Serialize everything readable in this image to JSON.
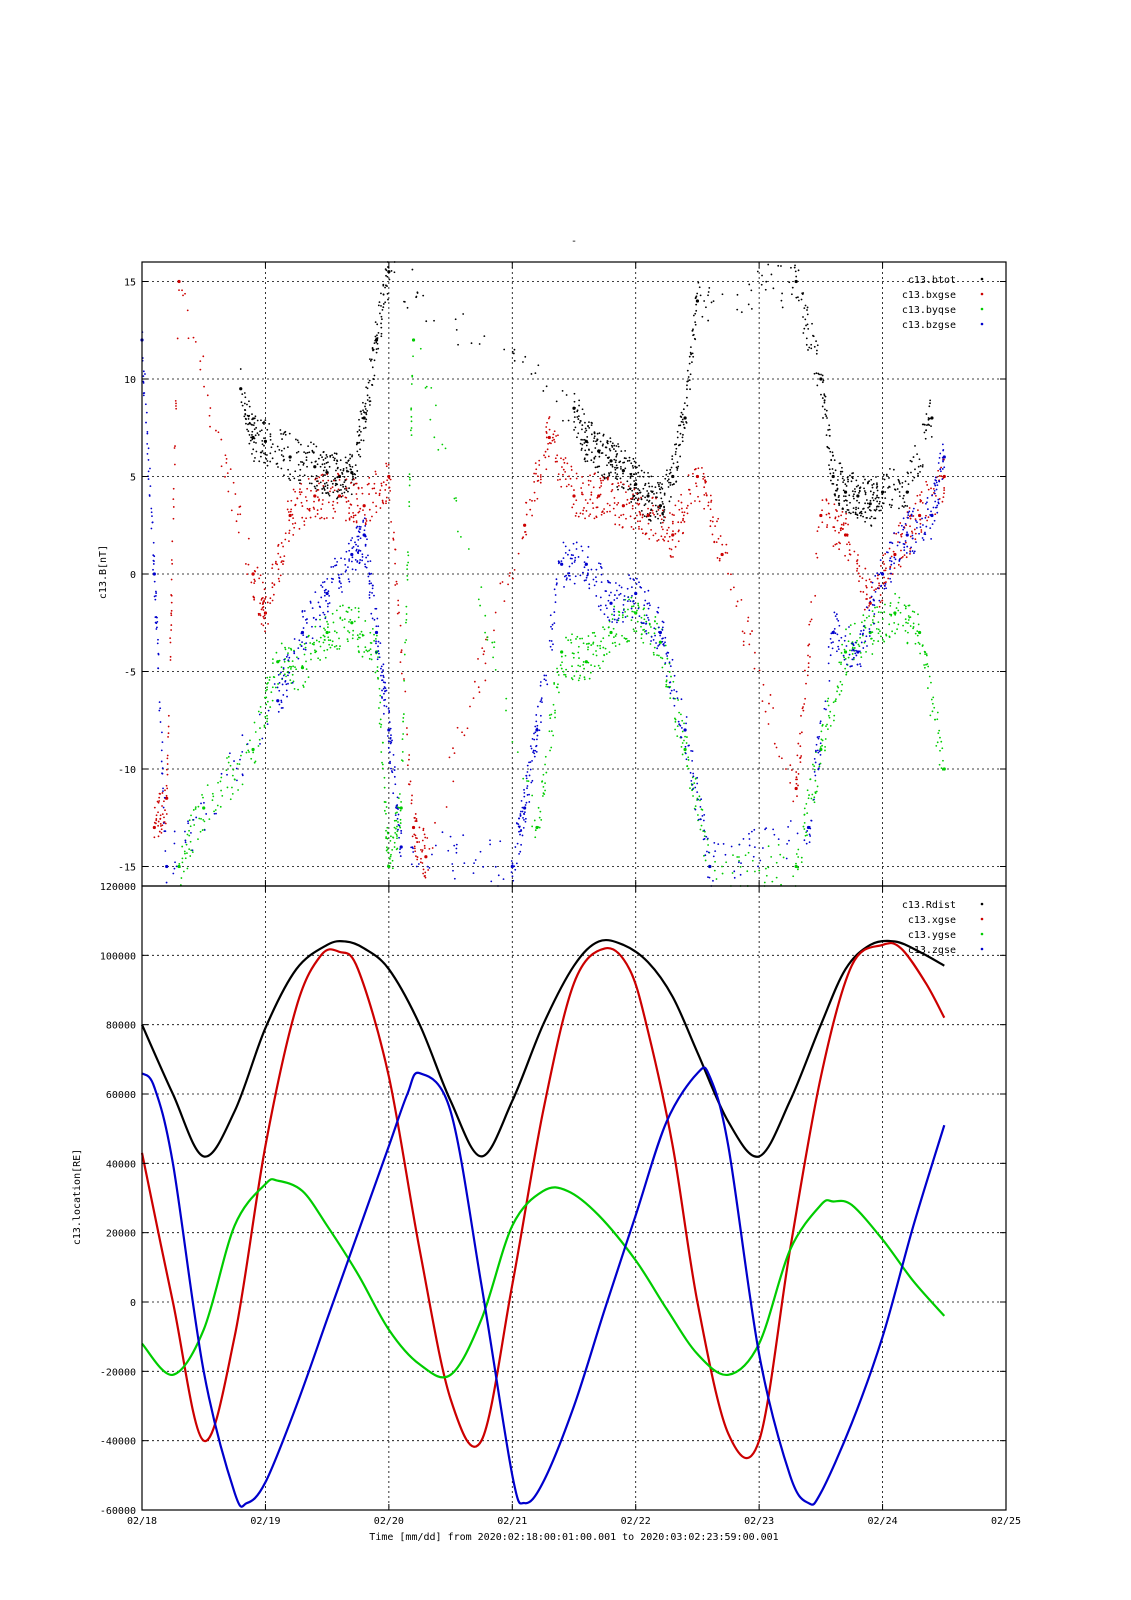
{
  "page": {
    "title_mark": "-"
  },
  "chart_data": [
    {
      "type": "scatter",
      "title": "",
      "ylabel": "c13.B[nT]",
      "ylim": [
        -16,
        16
      ],
      "yticks": [
        -15,
        -10,
        -5,
        0,
        5,
        10,
        15
      ],
      "xlim": [
        "02/18",
        "02/25"
      ],
      "grid": true,
      "legend_position": "top-right",
      "series": [
        {
          "name": "c13.btot",
          "color": "#000000",
          "x": [
            0.8,
            0.9,
            1.0,
            1.2,
            1.4,
            1.5,
            1.6,
            1.7,
            1.8,
            1.9,
            2.0,
            3.5,
            3.6,
            3.7,
            3.8,
            3.9,
            4.0,
            4.1,
            4.2,
            4.3,
            4.4,
            4.5,
            5.3,
            5.5,
            5.6,
            5.7,
            5.8,
            5.9,
            6.0,
            6.2,
            6.4
          ],
          "y": [
            9.5,
            7.0,
            6.8,
            6.0,
            5.5,
            5.2,
            5.0,
            5.2,
            8.0,
            12.0,
            15.5,
            8.5,
            6.8,
            6.3,
            5.8,
            5.3,
            4.6,
            4.0,
            3.5,
            5.0,
            8.0,
            14.0,
            15.0,
            10.0,
            5.0,
            4.2,
            4.0,
            3.6,
            4.2,
            4.2,
            8.0
          ]
        },
        {
          "name": "c13.bxgse",
          "color": "#cc0000",
          "x": [
            0.1,
            0.2,
            0.3,
            0.9,
            1.0,
            1.2,
            1.4,
            1.6,
            1.8,
            2.0,
            2.2,
            2.3,
            3.1,
            3.3,
            3.5,
            3.7,
            3.9,
            4.1,
            4.3,
            4.5,
            4.7,
            5.3,
            5.5,
            5.7,
            5.9,
            6.1,
            6.3,
            6.5
          ],
          "y": [
            -13.0,
            -11.5,
            15.0,
            0.0,
            -2.0,
            3.0,
            4.0,
            4.0,
            3.5,
            5.0,
            -13.0,
            -14.5,
            2.5,
            7.0,
            4.0,
            4.0,
            3.5,
            3.0,
            2.0,
            5.0,
            1.0,
            -11.0,
            3.0,
            2.0,
            -1.5,
            1.0,
            3.0,
            5.0
          ]
        },
        {
          "name": "c13.byqse",
          "color": "#00cc00",
          "x": [
            0.3,
            0.5,
            0.9,
            1.1,
            1.3,
            1.5,
            1.7,
            1.9,
            2.0,
            2.1,
            2.2,
            3.2,
            3.4,
            3.6,
            3.8,
            4.0,
            4.2,
            4.4,
            4.6,
            5.3,
            5.5,
            5.7,
            5.9,
            6.1,
            6.3,
            6.5
          ],
          "y": [
            -15.0,
            -12.0,
            -9.0,
            -4.5,
            -4.8,
            -3.0,
            -2.5,
            -4.0,
            -15.0,
            -12.0,
            12.0,
            -13.0,
            -4.0,
            -4.5,
            -3.0,
            -2.0,
            -3.5,
            -9.0,
            -15.0,
            -15.0,
            -9.0,
            -4.0,
            -3.0,
            -2.0,
            -3.0,
            -10.0
          ]
        },
        {
          "name": "c13.bzgse",
          "color": "#0000cc",
          "x": [
            0.0,
            0.1,
            0.2,
            1.1,
            1.3,
            1.5,
            1.7,
            1.8,
            1.9,
            2.0,
            2.1,
            3.0,
            3.1,
            3.2,
            3.4,
            3.6,
            3.8,
            4.0,
            4.2,
            4.4,
            4.6,
            5.4,
            5.6,
            5.8,
            6.0,
            6.2,
            6.4,
            6.5
          ],
          "y": [
            12.0,
            0.0,
            -15.0,
            -6.5,
            -3.0,
            -1.0,
            1.0,
            2.0,
            -3.0,
            -8.0,
            -14.0,
            -15.0,
            -12.0,
            -8.0,
            0.5,
            0.5,
            -1.5,
            -1.0,
            -3.0,
            -8.0,
            -15.0,
            -13.0,
            -3.0,
            -4.0,
            0.0,
            2.0,
            3.0,
            6.0
          ]
        }
      ]
    },
    {
      "type": "line",
      "title": "",
      "ylabel": "c13.location[RE]",
      "xlabel": "Time [mm/dd]  from 2020:02:18:00:01:00.001  to  2020:03:02:23:59:00.001",
      "ylim": [
        -60000,
        120000
      ],
      "yticks": [
        -60000,
        -40000,
        -20000,
        0,
        20000,
        40000,
        60000,
        80000,
        100000,
        120000
      ],
      "xlim": [
        0,
        7
      ],
      "xtick_labels": [
        "02/18",
        "02/19",
        "02/20",
        "02/21",
        "02/22",
        "02/23",
        "02/24",
        "02/25"
      ],
      "grid": true,
      "legend_position": "top-right",
      "series": [
        {
          "name": "c13.Rdist",
          "color": "#000000",
          "x": [
            0.0,
            0.25,
            0.5,
            0.75,
            1.0,
            1.25,
            1.5,
            1.65,
            1.8,
            2.0,
            2.25,
            2.5,
            2.75,
            3.0,
            3.25,
            3.5,
            3.7,
            3.9,
            4.1,
            4.3,
            4.5,
            4.75,
            5.0,
            5.25,
            5.5,
            5.7,
            5.9,
            6.1,
            6.3,
            6.5
          ],
          "y": [
            80000,
            60000,
            42000,
            55000,
            79000,
            96000,
            103000,
            104000,
            102000,
            96000,
            80000,
            58000,
            42000,
            58000,
            80000,
            97000,
            104000,
            103000,
            98000,
            88000,
            72000,
            52000,
            42000,
            58000,
            80000,
            96000,
            103000,
            104000,
            101000,
            97000
          ]
        },
        {
          "name": "c13.xgse",
          "color": "#cc0000",
          "x": [
            0.0,
            0.25,
            0.5,
            0.75,
            1.0,
            1.25,
            1.45,
            1.6,
            1.75,
            2.0,
            2.25,
            2.5,
            2.75,
            3.0,
            3.25,
            3.5,
            3.75,
            3.95,
            4.1,
            4.3,
            4.5,
            4.75,
            5.0,
            5.25,
            5.5,
            5.75,
            6.0,
            6.15,
            6.35,
            6.5
          ],
          "y": [
            43000,
            0,
            -40000,
            -10000,
            45000,
            85000,
            100000,
            101000,
            96000,
            65000,
            15000,
            -28000,
            -40000,
            5000,
            55000,
            92000,
            102000,
            96000,
            78000,
            45000,
            0,
            -38000,
            -40000,
            15000,
            65000,
            97000,
            103000,
            102000,
            92000,
            82000
          ]
        },
        {
          "name": "c13.ygse",
          "color": "#00cc00",
          "x": [
            0.0,
            0.25,
            0.5,
            0.75,
            1.0,
            1.1,
            1.3,
            1.5,
            1.75,
            2.0,
            2.25,
            2.5,
            2.75,
            3.0,
            3.25,
            3.45,
            3.7,
            4.0,
            4.25,
            4.5,
            4.75,
            5.0,
            5.25,
            5.5,
            5.6,
            5.75,
            6.0,
            6.25,
            6.5
          ],
          "y": [
            -12000,
            -21000,
            -8000,
            22000,
            34000,
            35000,
            32000,
            22000,
            8000,
            -8000,
            -18000,
            -21000,
            -5000,
            22000,
            32000,
            32000,
            25000,
            12000,
            -2000,
            -15000,
            -21000,
            -12000,
            15000,
            28000,
            29000,
            28000,
            18000,
            6000,
            -4000
          ]
        },
        {
          "name": "c13.zgse",
          "color": "#0000cc",
          "x": [
            0.0,
            0.1,
            0.25,
            0.5,
            0.75,
            0.85,
            1.0,
            1.25,
            1.5,
            1.75,
            2.0,
            2.15,
            2.25,
            2.5,
            2.75,
            3.0,
            3.1,
            3.25,
            3.5,
            3.75,
            4.0,
            4.25,
            4.5,
            4.6,
            4.75,
            5.0,
            5.25,
            5.4,
            5.5,
            5.75,
            6.0,
            6.25,
            6.5
          ],
          "y": [
            66000,
            62000,
            40000,
            -20000,
            -55000,
            -58000,
            -52000,
            -30000,
            -5000,
            20000,
            45000,
            60000,
            66000,
            55000,
            5000,
            -50000,
            -58000,
            -52000,
            -30000,
            -2000,
            25000,
            52000,
            66000,
            65000,
            45000,
            -15000,
            -50000,
            -58000,
            -55000,
            -35000,
            -10000,
            22000,
            51000
          ]
        }
      ]
    }
  ]
}
